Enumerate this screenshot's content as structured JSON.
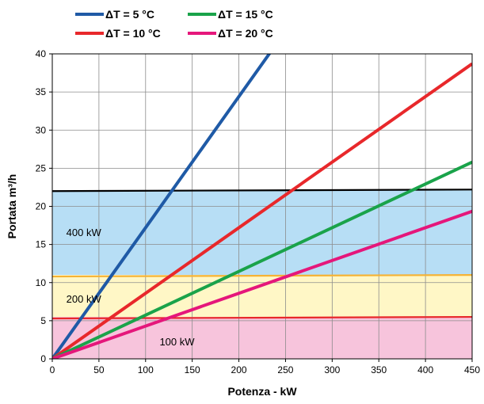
{
  "chart_data": {
    "type": "line",
    "title": "",
    "xlabel": "Potenza - kW",
    "ylabel": "Portata m³/h",
    "xlim": [
      0,
      450
    ],
    "ylim": [
      0,
      40
    ],
    "xticks": [
      0,
      50,
      100,
      150,
      200,
      250,
      300,
      350,
      400,
      450
    ],
    "yticks": [
      0,
      5,
      10,
      15,
      20,
      25,
      30,
      35,
      40
    ],
    "grid": true,
    "legend_position": "top",
    "series": [
      {
        "name": "ΔT = 5 °C",
        "color": "#1f5aa6",
        "x": [
          0,
          450
        ],
        "y": [
          0,
          77.4
        ]
      },
      {
        "name": "ΔT = 10 °C",
        "color": "#e8282b",
        "x": [
          0,
          450
        ],
        "y": [
          0,
          38.7
        ]
      },
      {
        "name": "ΔT = 15 °C",
        "color": "#1aa34a",
        "x": [
          0,
          450
        ],
        "y": [
          0,
          25.8
        ]
      },
      {
        "name": "ΔT = 20 °C",
        "color": "#e5177b",
        "x": [
          0,
          450
        ],
        "y": [
          0,
          19.35
        ]
      }
    ],
    "thresholds": [
      {
        "color": "#000000",
        "x": [
          0,
          450
        ],
        "y": [
          22.0,
          22.2
        ]
      },
      {
        "color": "#f5b335",
        "x": [
          0,
          450
        ],
        "y": [
          10.8,
          11.0
        ]
      },
      {
        "color": "#e8282b",
        "x": [
          0,
          450
        ],
        "y": [
          5.3,
          5.5
        ]
      }
    ],
    "bands": [
      {
        "label": "400 kW",
        "y0": 11.0,
        "y1": 22.1,
        "color": "#b7def5",
        "label_x": 15,
        "label_y": 16.5
      },
      {
        "label": "200 kW",
        "y0": 5.5,
        "y1": 11.0,
        "color": "#fff7c6",
        "label_x": 15,
        "label_y": 7.8
      },
      {
        "label": "100 kW",
        "y0": 0,
        "y1": 5.5,
        "color": "#f7c4dc",
        "label_x": 115,
        "label_y": 2.2
      }
    ]
  }
}
